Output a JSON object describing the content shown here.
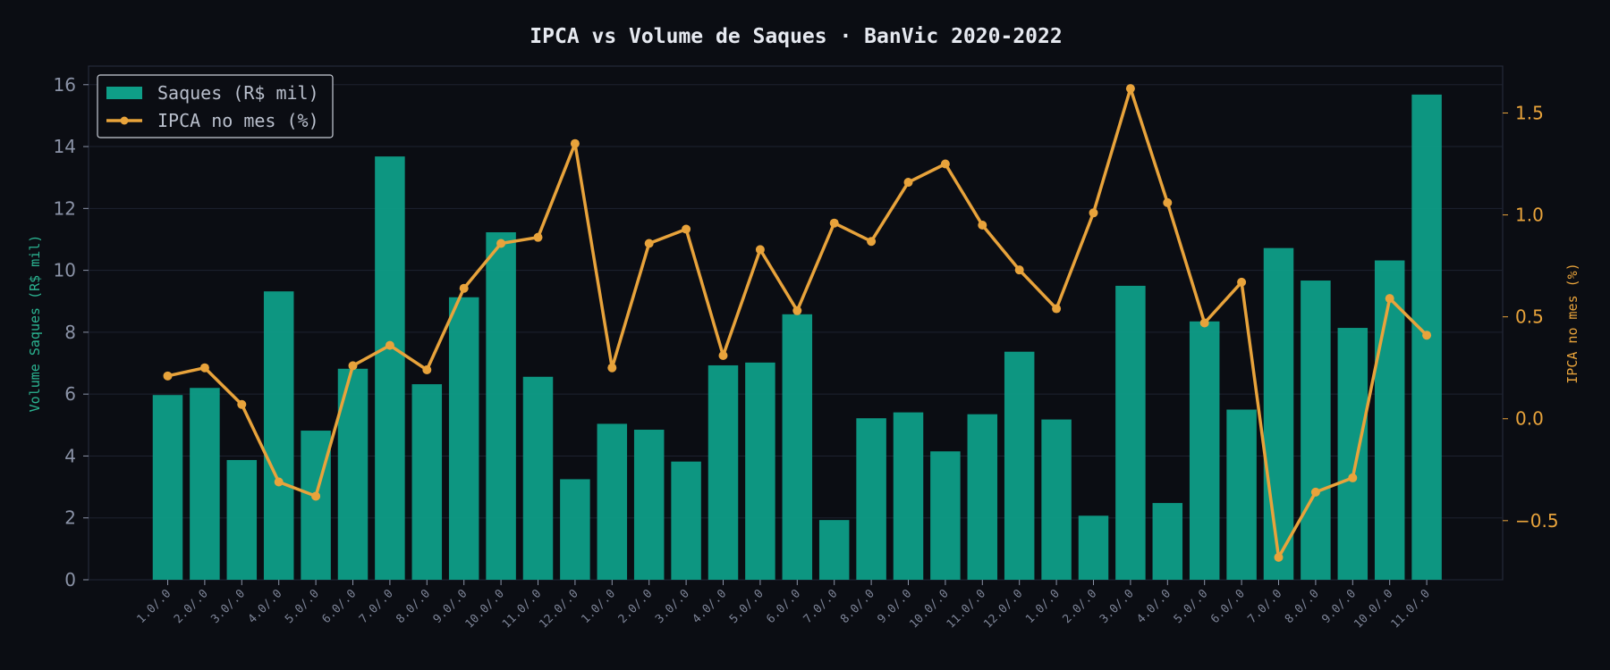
{
  "chart_data": {
    "type": "bar+line",
    "title": "IPCA vs Volume de Saques · BanVic 2020-2022",
    "categories": [
      "1.0/.0",
      "2.0/.0",
      "3.0/.0",
      "4.0/.0",
      "5.0/.0",
      "6.0/.0",
      "7.0/.0",
      "8.0/.0",
      "9.0/.0",
      "10.0/.0",
      "11.0/.0",
      "12.0/.0",
      "1.0/.0",
      "2.0/.0",
      "3.0/.0",
      "4.0/.0",
      "5.0/.0",
      "6.0/.0",
      "7.0/.0",
      "8.0/.0",
      "9.0/.0",
      "10.0/.0",
      "11.0/.0",
      "12.0/.0",
      "1.0/.0",
      "2.0/.0",
      "3.0/.0",
      "4.0/.0",
      "5.0/.0",
      "6.0/.0",
      "7.0/.0",
      "8.0/.0",
      "9.0/.0",
      "10.0/.0",
      "11.0/.0"
    ],
    "ylabel_left": "Volume Saques (R$ mil)",
    "ylabel_right": "IPCA no mes (%)",
    "ylim_left": [
      0,
      16.6
    ],
    "ylim_right": [
      -0.79,
      1.73
    ],
    "yticks_left": [
      0,
      2,
      4,
      6,
      8,
      10,
      12,
      14,
      16
    ],
    "yticks_right": [
      -0.5,
      0.0,
      0.5,
      1.0,
      1.5
    ],
    "ytick_labels_right": [
      "−0.5",
      "0.0",
      "0.5",
      "1.0",
      "1.5"
    ],
    "grid": true,
    "legend_position": "top-left",
    "series": [
      {
        "name": "Saques (R$ mil)",
        "type": "bar",
        "axis": "left",
        "color": "#0e9e87",
        "values": [
          5.97,
          6.2,
          3.87,
          9.32,
          4.82,
          6.82,
          13.68,
          6.32,
          9.13,
          11.23,
          6.56,
          3.25,
          5.04,
          4.85,
          3.82,
          6.93,
          7.02,
          8.58,
          1.93,
          5.22,
          5.41,
          4.15,
          5.35,
          7.37,
          5.18,
          2.07,
          9.5,
          2.48,
          8.35,
          5.5,
          10.72,
          9.67,
          8.14,
          10.32,
          15.68
        ]
      },
      {
        "name": "IPCA no mes (%)",
        "type": "line",
        "axis": "right",
        "color": "#e8a33b",
        "values": [
          0.21,
          0.25,
          0.07,
          -0.31,
          -0.38,
          0.26,
          0.36,
          0.24,
          0.64,
          0.86,
          0.89,
          1.35,
          0.25,
          0.86,
          0.93,
          0.31,
          0.83,
          0.53,
          0.96,
          0.87,
          1.16,
          1.25,
          0.95,
          0.73,
          0.54,
          1.01,
          1.62,
          1.06,
          0.47,
          0.67,
          -0.68,
          -0.36,
          -0.29,
          0.59,
          0.41
        ]
      }
    ]
  }
}
